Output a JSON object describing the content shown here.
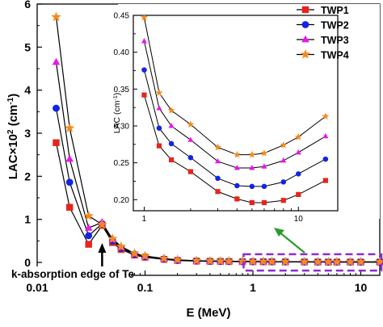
{
  "chart_data": [
    {
      "type": "line",
      "name": "main",
      "xlabel": "E (MeV)",
      "ylabel_main": "LAC×10",
      "ylabel_sup": "2",
      "ylabel_unit": " (cm",
      "ylabel_unit_sup": "-1",
      "ylabel_close": ")",
      "x_scale": "log",
      "xlim": [
        0.01,
        15
      ],
      "ylim": [
        -0.3,
        6
      ],
      "x_ticks": [
        0.01,
        0.1,
        1,
        10
      ],
      "x_tick_labels": [
        "0.01",
        "0.1",
        "1",
        "10"
      ],
      "y_ticks": [
        0,
        1,
        2,
        3,
        4,
        5,
        6
      ],
      "y_tick_labels": [
        "0",
        "1",
        "2",
        "3",
        "4",
        "5",
        "6"
      ],
      "x": [
        0.015,
        0.02,
        0.03,
        0.04,
        0.05,
        0.06,
        0.08,
        0.1,
        0.15,
        0.2,
        0.3,
        0.4,
        0.5,
        0.6,
        0.8,
        1,
        1.25,
        1.5,
        2,
        3,
        4,
        5,
        6,
        8,
        10,
        15
      ],
      "series": [
        {
          "name": "TWP1",
          "color": "#e8231c",
          "marker": "square",
          "values": [
            2.78,
            1.28,
            0.42,
            0.86,
            0.46,
            0.3,
            0.17,
            0.12,
            0.07,
            0.045,
            0.03,
            0.025,
            0.022,
            0.02,
            0.017,
            0.016,
            0.014,
            0.013,
            0.011,
            0.0095,
            0.0085,
            0.008,
            0.0078,
            0.0077,
            0.0076,
            0.0075
          ]
        },
        {
          "name": "TWP2",
          "color": "#1224e6",
          "marker": "circle",
          "values": [
            3.58,
            1.86,
            0.62,
            0.9,
            0.5,
            0.33,
            0.19,
            0.13,
            0.08,
            0.05,
            0.034,
            0.028,
            0.025,
            0.023,
            0.019,
            0.018,
            0.016,
            0.015,
            0.013,
            0.011,
            0.01,
            0.0095,
            0.009,
            0.009,
            0.009,
            0.0088
          ]
        },
        {
          "name": "TWP3",
          "color": "#e619e6",
          "marker": "triangle",
          "values": [
            4.65,
            2.4,
            0.8,
            0.93,
            0.53,
            0.35,
            0.2,
            0.14,
            0.085,
            0.055,
            0.037,
            0.031,
            0.027,
            0.025,
            0.021,
            0.02,
            0.018,
            0.017,
            0.014,
            0.012,
            0.011,
            0.0105,
            0.01,
            0.01,
            0.01,
            0.0098
          ]
        },
        {
          "name": "TWP4",
          "color": "#f28a1c",
          "marker": "star",
          "values": [
            5.7,
            3.12,
            1.08,
            0.88,
            0.55,
            0.37,
            0.21,
            0.15,
            0.09,
            0.06,
            0.04,
            0.034,
            0.03,
            0.027,
            0.023,
            0.022,
            0.02,
            0.018,
            0.016,
            0.013,
            0.012,
            0.0115,
            0.011,
            0.011,
            0.011,
            0.011
          ]
        }
      ],
      "annotation": "k-absorption edge of Te",
      "legend_position": "top-right"
    },
    {
      "type": "line",
      "name": "inset",
      "ylabel": "LAC (cm",
      "ylabel_sup": "-1",
      "ylabel_close": ")",
      "x_scale": "log",
      "xlim": [
        0.85,
        18
      ],
      "ylim": [
        0.185,
        0.45
      ],
      "x_ticks": [
        1,
        10
      ],
      "x_tick_labels": [
        "1",
        "10"
      ],
      "y_ticks": [
        0.2,
        0.25,
        0.3,
        0.35,
        0.4,
        0.45
      ],
      "y_tick_labels": [
        "0.20",
        "0.25",
        "0.30",
        "0.35",
        "0.40",
        "0.45"
      ],
      "x": [
        1,
        1.25,
        1.5,
        2,
        3,
        4,
        5,
        6,
        8,
        10,
        15
      ],
      "series": [
        {
          "name": "TWP1",
          "values": [
            0.342,
            0.273,
            0.254,
            0.238,
            0.211,
            0.201,
            0.196,
            0.196,
            0.199,
            0.207,
            0.226
          ]
        },
        {
          "name": "TWP2",
          "values": [
            0.376,
            0.297,
            0.276,
            0.257,
            0.229,
            0.219,
            0.218,
            0.218,
            0.224,
            0.235,
            0.255
          ]
        },
        {
          "name": "TWP3",
          "values": [
            0.415,
            0.324,
            0.3,
            0.281,
            0.252,
            0.243,
            0.243,
            0.245,
            0.253,
            0.264,
            0.286
          ]
        },
        {
          "name": "TWP4",
          "values": [
            0.447,
            0.345,
            0.321,
            0.302,
            0.271,
            0.261,
            0.261,
            0.263,
            0.274,
            0.285,
            0.313
          ]
        }
      ]
    }
  ]
}
